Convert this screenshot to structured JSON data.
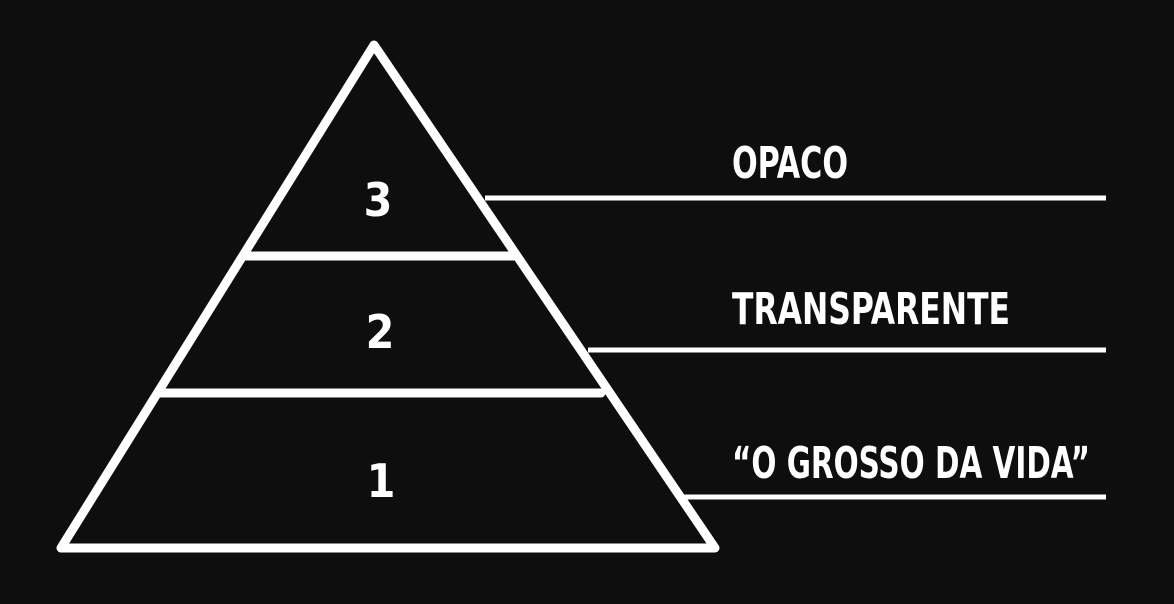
{
  "colors": {
    "background": "#0e0e0e",
    "foreground": "#ffffff"
  },
  "pyramid": {
    "levels": [
      {
        "number": "3",
        "label": "OPACO"
      },
      {
        "number": "2",
        "label": "TRANSPARENTE"
      },
      {
        "number": "1",
        "label": "“O GROSSO DA VIDA”"
      }
    ]
  }
}
